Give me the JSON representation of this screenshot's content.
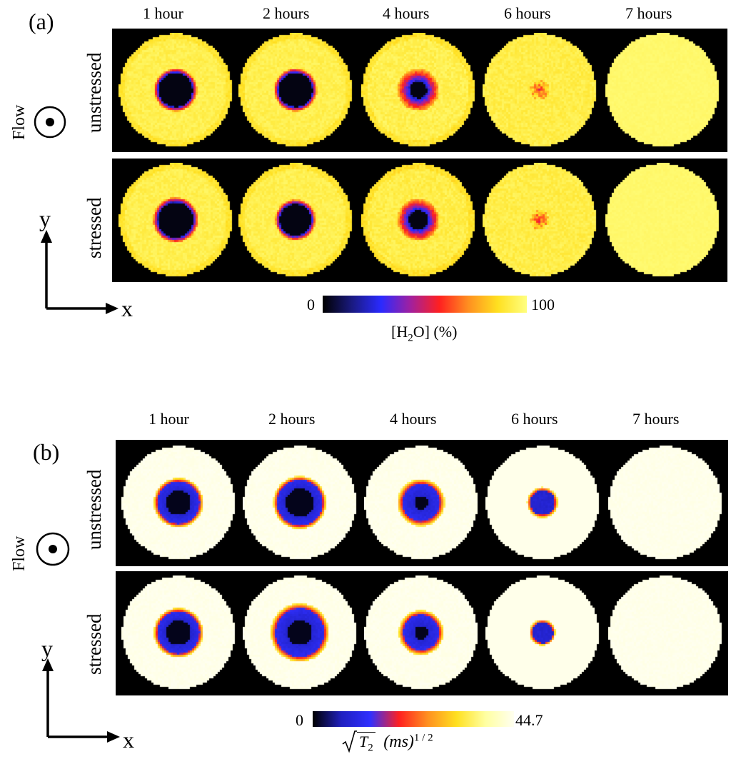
{
  "panels": [
    {
      "label": "(a)",
      "columns": [
        "1 hour",
        "2 hours",
        "4 hours",
        "6 hours",
        "7 hours"
      ],
      "rows": [
        "unstressed",
        "stressed"
      ],
      "flow_label": "Flow",
      "axis_x": "x",
      "axis_y": "y",
      "colorbar": {
        "min_label": "0",
        "max_label": "100",
        "title_main": "[H",
        "title_sub": "2",
        "title_rest": "O] (%)",
        "colors": [
          "#000000",
          "#1a1a80",
          "#2a2aff",
          "#a020a0",
          "#ff2020",
          "#ff9020",
          "#ffe020",
          "#ffff80"
        ]
      },
      "map_style": "h2o"
    },
    {
      "label": "(b)",
      "columns": [
        "1 hour",
        "2 hours",
        "4 hours",
        "6 hours",
        "7 hours"
      ],
      "rows": [
        "unstressed",
        "stressed"
      ],
      "flow_label": "Flow",
      "axis_x": "x",
      "axis_y": "y",
      "colorbar": {
        "min_label": "0",
        "max_label": "44.7",
        "title_T": "T",
        "title_sub": "2",
        "title_units": "(ms)",
        "title_exp": "1 / 2",
        "colors": [
          "#000000",
          "#2020c0",
          "#3030ff",
          "#ff2020",
          "#ff9020",
          "#ffe020",
          "#ffffa0",
          "#fffff0"
        ]
      },
      "map_style": "t2"
    }
  ]
}
